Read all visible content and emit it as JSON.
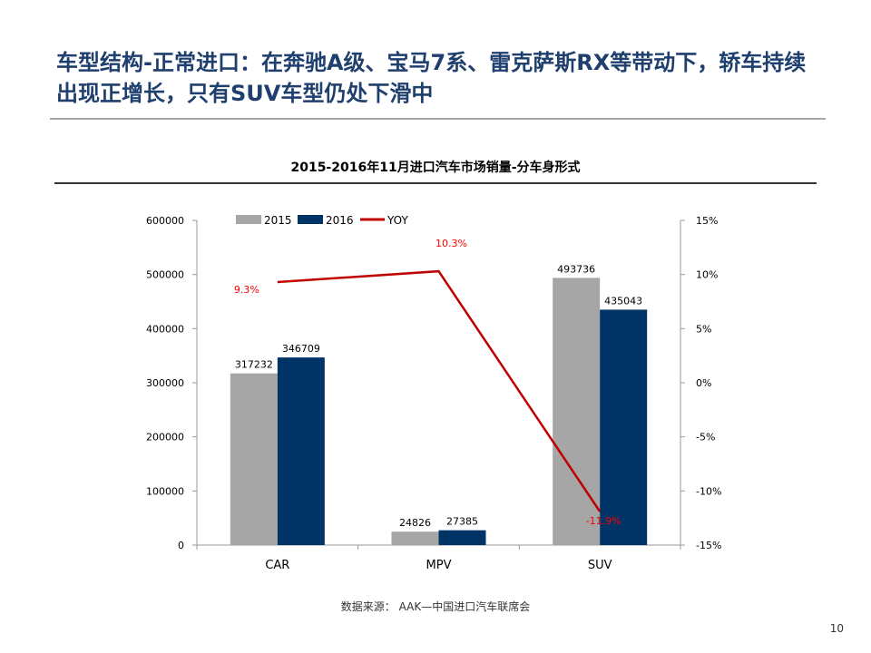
{
  "slide": {
    "title": "车型结构-正常进口：在奔驰A级、宝马7系、雷克萨斯RX等带动下，轿车持续出现正增长，只有SUV车型仍处下滑中",
    "source": "数据来源： AAK—中国进口汽车联席会",
    "page_number": "10"
  },
  "colors": {
    "title": "#1f3f6e",
    "series_2015": "#a6a6a6",
    "series_2016": "#003366",
    "yoy_line": "#c00000",
    "yoy_label": "#ff0000"
  },
  "chart_data": {
    "type": "bar",
    "title": "2015-2016年11月进口汽车市场销量-分车身形式",
    "categories": [
      "CAR",
      "MPV",
      "SUV"
    ],
    "series": [
      {
        "name": "2015",
        "type": "bar",
        "axis": "left",
        "values": [
          317232,
          24826,
          493736
        ],
        "labels": [
          "317232",
          "24826",
          "493736"
        ]
      },
      {
        "name": "2016",
        "type": "bar",
        "axis": "left",
        "values": [
          346709,
          27385,
          435043
        ],
        "labels": [
          "346709",
          "27385",
          "435043"
        ]
      },
      {
        "name": "YOY",
        "type": "line",
        "axis": "right",
        "values": [
          9.3,
          10.3,
          -11.9
        ],
        "labels": [
          "9.3%",
          "10.3%",
          "-11.9%"
        ]
      }
    ],
    "y_left": {
      "min": 0,
      "max": 600000,
      "ticks": [
        "0",
        "100000",
        "200000",
        "300000",
        "400000",
        "500000",
        "600000"
      ]
    },
    "y_right": {
      "min": -15,
      "max": 15,
      "ticks": [
        "-15%",
        "-10%",
        "-5%",
        "0%",
        "5%",
        "10%",
        "15%"
      ]
    },
    "legend_position": "top-left",
    "grid": false
  }
}
